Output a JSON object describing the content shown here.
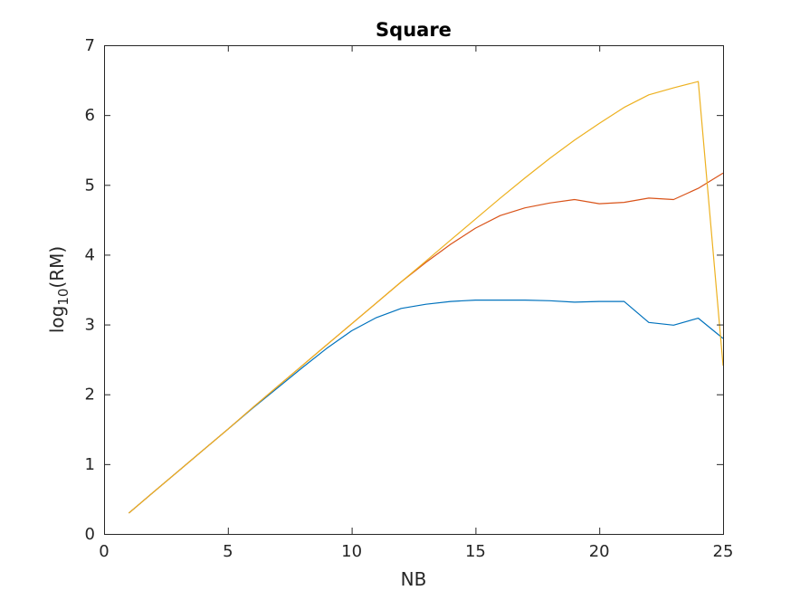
{
  "chart_data": {
    "type": "line",
    "title": "Square",
    "xlabel": "NB",
    "ylabel": {
      "base": "log",
      "subscript": "10",
      "rest": "(RM)"
    },
    "xlim": [
      0,
      25
    ],
    "ylim": [
      0,
      7
    ],
    "xticks": [
      0,
      5,
      10,
      15,
      20,
      25
    ],
    "yticks": [
      0,
      1,
      2,
      3,
      4,
      5,
      6,
      7
    ],
    "grid": false,
    "x": [
      1,
      2,
      3,
      4,
      5,
      6,
      7,
      8,
      9,
      10,
      11,
      12,
      13,
      14,
      15,
      16,
      17,
      18,
      19,
      20,
      21,
      22,
      23,
      24,
      25
    ],
    "series": [
      {
        "color": "#0072bd",
        "values": [
          0.3,
          0.6,
          0.9,
          1.2,
          1.5,
          1.8,
          2.09,
          2.38,
          2.66,
          2.91,
          3.1,
          3.23,
          3.29,
          3.33,
          3.35,
          3.35,
          3.35,
          3.34,
          3.32,
          3.33,
          3.33,
          3.03,
          2.99,
          3.09,
          2.8
        ]
      },
      {
        "color": "#d95319",
        "values": [
          0.3,
          0.6,
          0.9,
          1.2,
          1.5,
          1.81,
          2.11,
          2.41,
          2.71,
          3.01,
          3.31,
          3.61,
          3.89,
          4.15,
          4.38,
          4.56,
          4.67,
          4.74,
          4.79,
          4.73,
          4.75,
          4.81,
          4.79,
          4.95,
          5.17
        ]
      },
      {
        "color": "#edb120",
        "values": [
          0.3,
          0.6,
          0.9,
          1.2,
          1.5,
          1.81,
          2.11,
          2.41,
          2.71,
          3.01,
          3.31,
          3.61,
          3.91,
          4.21,
          4.51,
          4.81,
          5.1,
          5.38,
          5.64,
          5.88,
          6.11,
          6.29,
          6.39,
          6.48,
          2.41
        ]
      }
    ]
  }
}
